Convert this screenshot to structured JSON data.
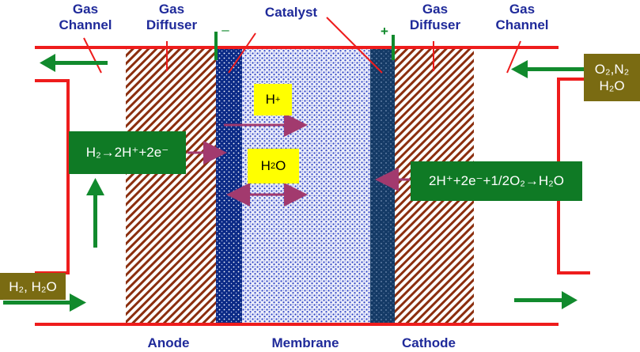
{
  "labels": {
    "gas_channel_left_line1": "Gas",
    "gas_channel_left_line2": "Channel",
    "gas_diffuser_left_line1": "Gas",
    "gas_diffuser_left_line2": "Diffuser",
    "catalyst": "Catalyst",
    "gas_diffuser_right_line1": "Gas",
    "gas_diffuser_right_line2": "Diffuser",
    "gas_channel_right_line1": "Gas",
    "gas_channel_right_line2": "Channel",
    "anode": "Anode",
    "membrane": "Membrane",
    "cathode": "Cathode",
    "minus": "–",
    "plus": "+"
  },
  "boxes": {
    "proton": {
      "main": "H",
      "sup": "+"
    },
    "water": {
      "pre": "H",
      "sub": "2",
      "post": "O"
    },
    "anode_reaction": {
      "text": "H₂→2H⁺+2e⁻"
    },
    "cathode_reaction": {
      "text": "2H⁺+2e⁻+1/2O₂→H₂O"
    },
    "inlet_anode": {
      "text": "H₂, H₂O"
    },
    "inlet_cathode": {
      "line1": "O₂,N₂",
      "line2": "H₂O"
    }
  },
  "colors": {
    "frame_red": "#ee1c1c",
    "catalyst_blue": "#0b2a86",
    "catalyst_dark_blue": "#143a66",
    "membrane_blue": "#2e43c4",
    "diffuser_brown": "#8b2e0e",
    "arrow_green": "#118a2d",
    "arrow_purple": "#a23a6e",
    "label_blue": "#1f2a9a"
  }
}
